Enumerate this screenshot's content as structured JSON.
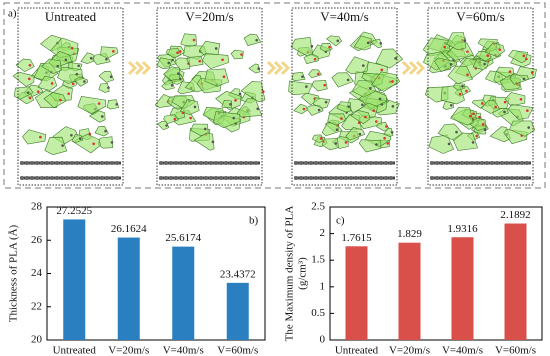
{
  "panel_a": {
    "label": "a)",
    "frames": [
      "Untreated",
      "V=20m/s",
      "V=40m/s",
      "V=60m/s"
    ]
  },
  "chart_data": [
    {
      "type": "bar",
      "panel_label": "b)",
      "ylabel": [
        "Thickness of PLA (Å)"
      ],
      "categories": [
        "Untreated",
        "V=20m/s",
        "V=40m/s",
        "V=60m/s"
      ],
      "values": [
        27.2525,
        26.1624,
        25.6174,
        23.4372
      ],
      "color": "#2a7fc1",
      "ylim": [
        20,
        28
      ],
      "yticks": [
        20,
        22,
        24,
        26,
        28
      ]
    },
    {
      "type": "bar",
      "panel_label": "c)",
      "ylabel": [
        "The Maximum density of PLA",
        "(g/cm³)"
      ],
      "categories": [
        "Untreated",
        "V=20m/s",
        "V=40m/s",
        "V=60m/s"
      ],
      "values": [
        1.7615,
        1.829,
        1.9316,
        2.1892
      ],
      "color": "#d94f4a",
      "ylim": [
        0,
        2.5
      ],
      "yticks": [
        0,
        0.5,
        1,
        1.5,
        2,
        2.5
      ]
    }
  ]
}
